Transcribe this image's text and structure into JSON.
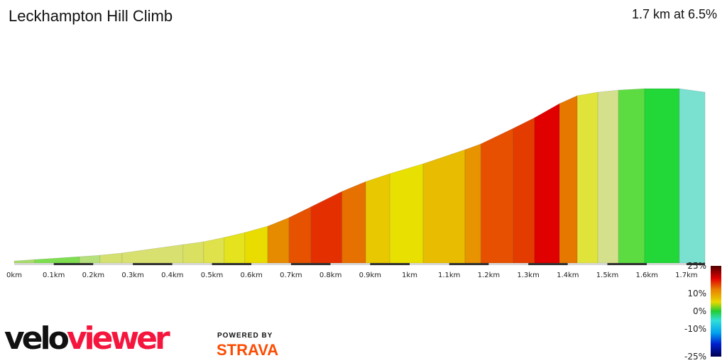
{
  "header": {
    "title": "Leckhampton Hill Climb",
    "summary": "1.7 km at 6.5%"
  },
  "chart_data": {
    "type": "area",
    "title": "Leckhampton Hill Climb",
    "xlabel": "",
    "ylabel": "",
    "xlim": [
      0,
      1.75
    ],
    "x_ticks": [
      "0km",
      "0.1km",
      "0.2km",
      "0.3km",
      "0.4km",
      "0.5km",
      "0.6km",
      "0.7km",
      "0.8km",
      "0.9km",
      "1km",
      "1.1km",
      "1.2km",
      "1.3km",
      "1.4km",
      "1.5km",
      "1.6km",
      "1.7km"
    ],
    "profile": [
      [
        0,
        1.3
      ],
      [
        0.052,
        2.2
      ],
      [
        0.165,
        4.0
      ],
      [
        0.217,
        4.9
      ],
      [
        0.273,
        6.3
      ],
      [
        0.427,
        11.6
      ],
      [
        0.479,
        13.4
      ],
      [
        0.531,
        16.1
      ],
      [
        0.583,
        19.2
      ],
      [
        0.641,
        23.2
      ],
      [
        0.695,
        28.6
      ],
      [
        0.75,
        35.3
      ],
      [
        0.829,
        45.1
      ],
      [
        0.889,
        51.3
      ],
      [
        0.95,
        56.3
      ],
      [
        1.034,
        62.5
      ],
      [
        1.14,
        71.4
      ],
      [
        1.18,
        75.0
      ],
      [
        1.262,
        84.8
      ],
      [
        1.316,
        91.5
      ],
      [
        1.379,
        100.4
      ],
      [
        1.424,
        105.4
      ],
      [
        1.476,
        107.6
      ],
      [
        1.528,
        108.9
      ],
      [
        1.594,
        109.8
      ],
      [
        1.682,
        109.8
      ],
      [
        1.747,
        107.6
      ]
    ],
    "segment_colors": [
      "#a8dc6a",
      "#7ede50",
      "#b6e07c",
      "#d4e070",
      "#d8e070",
      "#dae060",
      "#dfe24a",
      "#e4e31e",
      "#e8dc00",
      "#e68a00",
      "#e65200",
      "#e43000",
      "#e67000",
      "#e8c800",
      "#e8e000",
      "#e8bc00",
      "#e89400",
      "#e65000",
      "#e43c00",
      "#e00000",
      "#e67800",
      "#e0e43a",
      "#d4e08c",
      "#5cdc40",
      "#22d838",
      "#7ae0d0"
    ],
    "legend": {
      "labels": [
        "25%",
        "10%",
        "0%",
        "-10%",
        "-25%"
      ],
      "values": [
        25,
        10,
        0,
        -10,
        -25
      ],
      "stops": [
        [
          "25",
          "#500000"
        ],
        [
          "18",
          "#e00000"
        ],
        [
          "12",
          "#e88000"
        ],
        [
          "5",
          "#e8d800"
        ],
        [
          "0",
          "#22cc33"
        ],
        [
          "-5",
          "#30e0d8"
        ],
        [
          "-12",
          "#00a0f0"
        ],
        [
          "-18",
          "#0020d0"
        ],
        [
          "-25",
          "#000050"
        ]
      ]
    }
  },
  "branding": {
    "logo_left": "velo",
    "logo_right": "viewer",
    "powered": "POWERED BY",
    "strava": "STRAVA"
  }
}
